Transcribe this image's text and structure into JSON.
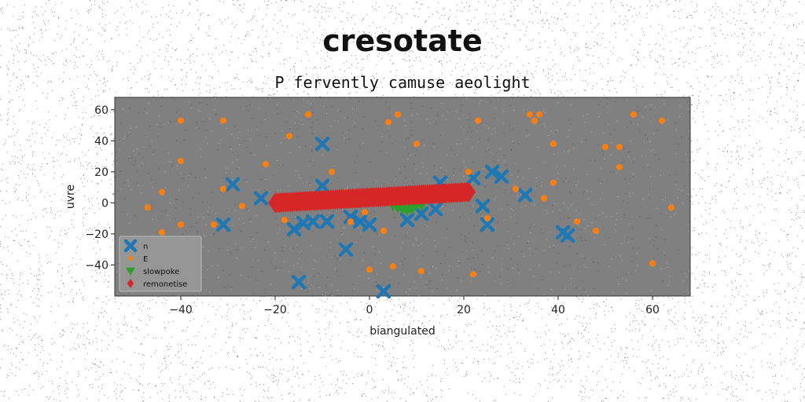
{
  "title": "cresotate",
  "chart_data": {
    "type": "scatter",
    "title": "P fervently camuse aeolight",
    "xlabel": "biangulated",
    "ylabel": "uvre",
    "xlim": [
      -54,
      68
    ],
    "ylim": [
      -60,
      68
    ],
    "xticks": [
      -40,
      -20,
      0,
      20,
      40,
      60
    ],
    "yticks": [
      -40,
      -20,
      0,
      20,
      40,
      60
    ],
    "grid": false,
    "background": "#808080",
    "legend_position": "lower-left",
    "series": [
      {
        "name": "n",
        "marker": "x-thick",
        "color": "#1f77b4",
        "points": [
          [
            -10,
            38
          ],
          [
            -29,
            12
          ],
          [
            -23,
            3
          ],
          [
            -10,
            11
          ],
          [
            -31,
            -14
          ],
          [
            -16,
            -17
          ],
          [
            -14,
            -13
          ],
          [
            -12,
            -12
          ],
          [
            -9,
            -12
          ],
          [
            -4,
            -9
          ],
          [
            -2,
            -12
          ],
          [
            0,
            -14
          ],
          [
            -5,
            -30
          ],
          [
            -15,
            -51
          ],
          [
            3,
            -57
          ],
          [
            8,
            -11
          ],
          [
            11,
            -7
          ],
          [
            14,
            -4
          ],
          [
            15,
            13
          ],
          [
            22,
            16
          ],
          [
            26,
            20
          ],
          [
            28,
            17
          ],
          [
            33,
            5
          ],
          [
            25,
            -14
          ],
          [
            41,
            -19
          ],
          [
            42,
            -21
          ],
          [
            24,
            -2
          ],
          [
            20,
            6
          ]
        ]
      },
      {
        "name": "E",
        "marker": "dot",
        "color": "#ff7f0e",
        "points": [
          [
            -40,
            53
          ],
          [
            -31,
            53
          ],
          [
            -13,
            57
          ],
          [
            -17,
            43
          ],
          [
            -40,
            27
          ],
          [
            -47,
            -3
          ],
          [
            -44,
            7
          ],
          [
            -44,
            -19
          ],
          [
            -40,
            -14
          ],
          [
            -33,
            -14
          ],
          [
            -31,
            9
          ],
          [
            -27,
            -2
          ],
          [
            -22,
            25
          ],
          [
            -18,
            -11
          ],
          [
            -8,
            20
          ],
          [
            -5,
            7
          ],
          [
            -4,
            -12
          ],
          [
            -1,
            -6
          ],
          [
            0,
            -43
          ],
          [
            3,
            -18
          ],
          [
            4,
            52
          ],
          [
            6,
            57
          ],
          [
            5,
            -41
          ],
          [
            10,
            38
          ],
          [
            11,
            -44
          ],
          [
            21,
            20
          ],
          [
            23,
            53
          ],
          [
            22,
            -46
          ],
          [
            25,
            -10
          ],
          [
            31,
            9
          ],
          [
            34,
            57
          ],
          [
            35,
            53
          ],
          [
            36,
            57
          ],
          [
            37,
            3
          ],
          [
            39,
            13
          ],
          [
            39,
            38
          ],
          [
            44,
            -12
          ],
          [
            48,
            -18
          ],
          [
            50,
            36
          ],
          [
            53,
            36
          ],
          [
            53,
            23
          ],
          [
            56,
            57
          ],
          [
            60,
            -39
          ],
          [
            62,
            53
          ],
          [
            64,
            -3
          ]
        ]
      },
      {
        "name": "slowpoke",
        "marker": "triangle-down",
        "color": "#2ca02c",
        "points": [
          [
            5,
            -2
          ],
          [
            6,
            -3
          ],
          [
            7,
            -4
          ],
          [
            8,
            -2
          ],
          [
            9,
            -3
          ],
          [
            10,
            -1
          ],
          [
            6,
            -1
          ],
          [
            8,
            -5
          ],
          [
            9,
            -4
          ],
          [
            11,
            -2
          ]
        ]
      },
      {
        "name": "remonetise",
        "marker": "diamond",
        "color": "#d62728",
        "line": [
          [
            -20,
            0
          ],
          [
            21,
            7
          ]
        ]
      }
    ]
  }
}
